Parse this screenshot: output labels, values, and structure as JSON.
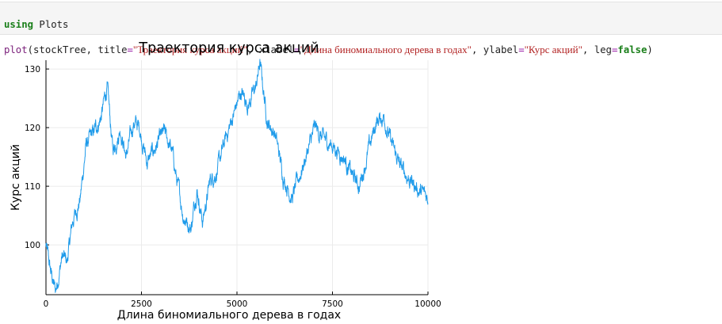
{
  "code": {
    "line1": {
      "keyword": "using",
      "module": " Plots"
    },
    "line2": {
      "fn": "plot",
      "open": "(stockTree, ",
      "title_kw": "title",
      "title_val": "\"Траектория курса акций\"",
      "sep1": ", ",
      "xlabel_kw": "xlabel",
      "xlabel_val": "\"Длина биномиального дерева в годах\"",
      "sep2": ", ",
      "ylabel_kw": "ylabel",
      "ylabel_val": "\"Курс акций\"",
      "sep3": ", ",
      "leg_kw": "leg",
      "leg_val": "false",
      "close": ")",
      "eq": "="
    }
  },
  "chart_data": {
    "type": "line",
    "title": "Траектория курса акций",
    "xlabel": "Длина биномиального дерева в годах",
    "ylabel": "Курс акций",
    "legend": false,
    "grid": true,
    "xlim": [
      0,
      10000
    ],
    "ylim": [
      91.5,
      131.5
    ],
    "x_ticks": [
      0,
      2500,
      5000,
      7500,
      10000
    ],
    "y_ticks": [
      100,
      110,
      120,
      130
    ],
    "series_color": "#1f9bea",
    "anchor_points": [
      {
        "x": 0,
        "y": 100
      },
      {
        "x": 100,
        "y": 96
      },
      {
        "x": 250,
        "y": 92
      },
      {
        "x": 420,
        "y": 98
      },
      {
        "x": 550,
        "y": 97
      },
      {
        "x": 700,
        "y": 104
      },
      {
        "x": 900,
        "y": 108
      },
      {
        "x": 1050,
        "y": 117
      },
      {
        "x": 1250,
        "y": 119
      },
      {
        "x": 1450,
        "y": 122
      },
      {
        "x": 1600,
        "y": 127
      },
      {
        "x": 1750,
        "y": 116
      },
      {
        "x": 1950,
        "y": 120
      },
      {
        "x": 2100,
        "y": 115
      },
      {
        "x": 2300,
        "y": 121
      },
      {
        "x": 2450,
        "y": 120
      },
      {
        "x": 2650,
        "y": 114
      },
      {
        "x": 2900,
        "y": 117
      },
      {
        "x": 3100,
        "y": 119
      },
      {
        "x": 3300,
        "y": 116
      },
      {
        "x": 3450,
        "y": 110
      },
      {
        "x": 3600,
        "y": 105
      },
      {
        "x": 3800,
        "y": 103
      },
      {
        "x": 3950,
        "y": 110
      },
      {
        "x": 4100,
        "y": 104
      },
      {
        "x": 4300,
        "y": 111
      },
      {
        "x": 4500,
        "y": 113
      },
      {
        "x": 4700,
        "y": 118
      },
      {
        "x": 4900,
        "y": 122
      },
      {
        "x": 5100,
        "y": 126
      },
      {
        "x": 5300,
        "y": 124
      },
      {
        "x": 5500,
        "y": 127
      },
      {
        "x": 5600,
        "y": 131
      },
      {
        "x": 5800,
        "y": 121
      },
      {
        "x": 6000,
        "y": 119
      },
      {
        "x": 6200,
        "y": 112
      },
      {
        "x": 6450,
        "y": 108
      },
      {
        "x": 6600,
        "y": 111
      },
      {
        "x": 6850,
        "y": 116
      },
      {
        "x": 7050,
        "y": 120
      },
      {
        "x": 7250,
        "y": 118
      },
      {
        "x": 7500,
        "y": 117
      },
      {
        "x": 7800,
        "y": 115
      },
      {
        "x": 8000,
        "y": 112
      },
      {
        "x": 8200,
        "y": 110
      },
      {
        "x": 8400,
        "y": 115
      },
      {
        "x": 8650,
        "y": 121
      },
      {
        "x": 8850,
        "y": 122
      },
      {
        "x": 9050,
        "y": 117
      },
      {
        "x": 9300,
        "y": 113
      },
      {
        "x": 9550,
        "y": 111
      },
      {
        "x": 9800,
        "y": 109
      },
      {
        "x": 10000,
        "y": 108
      }
    ],
    "sample_points": 2000
  }
}
